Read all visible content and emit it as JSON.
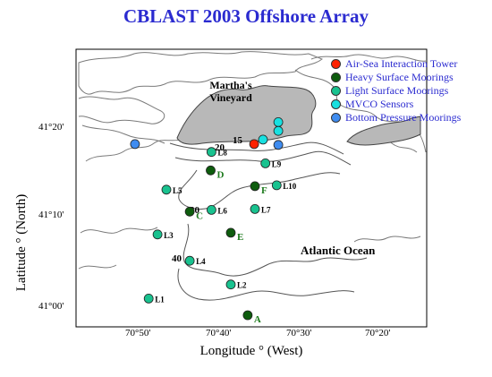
{
  "title": "CBLAST 2003 Offshore Array",
  "axes": {
    "xlabel": "Longitude ° (West)",
    "ylabel": "Latitude ° (North)",
    "xticks": [
      "70°50'",
      "70°40'",
      "70°30'",
      "70°20'"
    ],
    "yticks": [
      "41°00'",
      "41°10'",
      "41°20'"
    ]
  },
  "map_labels": {
    "island": [
      "Martha's",
      "Vineyard"
    ],
    "ocean": "Atlantic  Ocean"
  },
  "depth_labels": [
    "15",
    "20",
    "30",
    "40"
  ],
  "legend": [
    {
      "label": "Air-Sea Interaction Tower",
      "color": "#ff2200"
    },
    {
      "label": "Heavy Surface Moorings",
      "color": "#0d5c0d"
    },
    {
      "label": "Light Surface Moorings",
      "color": "#19c28f"
    },
    {
      "label": "MVCO Sensors",
      "color": "#19e0e0"
    },
    {
      "label": "Bottom Pressure Moorings",
      "color": "#3f8cf0"
    }
  ],
  "stations": [
    {
      "label": "L1",
      "type": "light",
      "lon": 70.8033,
      "lat": 41.03
    },
    {
      "label": "L2",
      "type": "light",
      "lon": 70.6333,
      "lat": 41.0567
    },
    {
      "label": "L3",
      "type": "light",
      "lon": 70.785,
      "lat": 41.1517
    },
    {
      "label": "L4",
      "type": "light",
      "lon": 70.7183,
      "lat": 41.1017
    },
    {
      "label": "L5",
      "type": "light",
      "lon": 70.7667,
      "lat": 41.2367
    },
    {
      "label": "L6",
      "type": "light",
      "lon": 70.6733,
      "lat": 41.1983
    },
    {
      "label": "L7",
      "type": "light",
      "lon": 70.5833,
      "lat": 41.2
    },
    {
      "label": "L8",
      "type": "light",
      "lon": 70.6733,
      "lat": 41.3083
    },
    {
      "label": "L9",
      "type": "light",
      "lon": 70.5617,
      "lat": 41.2867
    },
    {
      "label": "L10",
      "type": "light",
      "lon": 70.5383,
      "lat": 41.245
    },
    {
      "label": "A",
      "type": "heavy",
      "lon": 70.5983,
      "lat": 40.9983
    },
    {
      "label": "C",
      "type": "heavy",
      "lon": 70.7183,
      "lat": 41.195
    },
    {
      "label": "D",
      "type": "heavy",
      "lon": 70.675,
      "lat": 41.2733
    },
    {
      "label": "E",
      "type": "heavy",
      "lon": 70.6333,
      "lat": 41.155
    },
    {
      "label": "F",
      "type": "heavy",
      "lon": 70.5833,
      "lat": 41.2433
    },
    {
      "label": "",
      "type": "tower",
      "lon": 70.585,
      "lat": 41.3233
    },
    {
      "label": "",
      "type": "mvco",
      "lon": 70.5667,
      "lat": 41.3317
    },
    {
      "label": "",
      "type": "mvco",
      "lon": 70.535,
      "lat": 41.365
    },
    {
      "label": "",
      "type": "mvco",
      "lon": 70.535,
      "lat": 41.3483
    },
    {
      "label": "",
      "type": "bpm",
      "lon": 70.8317,
      "lat": 41.3233
    },
    {
      "label": "",
      "type": "bpm",
      "lon": 70.535,
      "lat": 41.3217
    }
  ]
}
